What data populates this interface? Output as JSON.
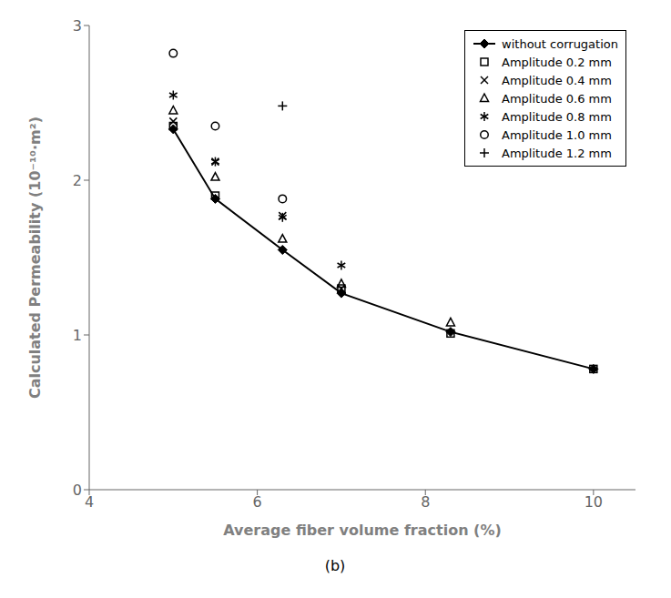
{
  "chart_data": {
    "type": "line",
    "title": "(b)",
    "xlabel": "Average fiber volume fraction (%)",
    "ylabel": "Calculated Permeability (10⁻¹⁰·m²)",
    "xlim": [
      4,
      10.5
    ],
    "ylim": [
      0,
      3
    ],
    "xticks": [
      4,
      6,
      8,
      10
    ],
    "yticks": [
      0,
      1,
      2,
      3
    ],
    "grid": false,
    "legend": "upper right",
    "series": [
      {
        "name": "without corrugation",
        "type": "line",
        "color": "black",
        "marker": "diamond",
        "x": [
          5.0,
          5.5,
          6.3,
          7.0,
          8.3,
          10.0
        ],
        "values": [
          2.33,
          1.88,
          1.55,
          1.27,
          1.02,
          0.78
        ]
      },
      {
        "name": "Amplitude 0.2 mm",
        "type": "scatter",
        "color": "black",
        "marker": "square",
        "x": [
          5.0,
          5.5,
          7.0,
          8.3,
          10.0
        ],
        "values": [
          2.35,
          1.9,
          1.3,
          1.01,
          0.78
        ]
      },
      {
        "name": "Amplitude 0.4 mm",
        "type": "scatter",
        "color": "black",
        "marker": "x",
        "x": [
          5.0,
          5.5,
          6.3,
          7.0
        ],
        "values": [
          2.38,
          2.12,
          1.77,
          1.3
        ]
      },
      {
        "name": "Amplitude 0.6 mm",
        "type": "scatter",
        "color": "black",
        "marker": "triangle",
        "x": [
          5.0,
          5.5,
          6.3,
          7.0,
          8.3
        ],
        "values": [
          2.45,
          2.02,
          1.62,
          1.33,
          1.08
        ]
      },
      {
        "name": "Amplitude 0.8 mm",
        "type": "scatter",
        "color": "black",
        "marker": "asterisk",
        "x": [
          5.0,
          5.5,
          6.3,
          7.0
        ],
        "values": [
          2.55,
          2.12,
          1.76,
          1.45
        ]
      },
      {
        "name": "Amplitude 1.0 mm",
        "type": "scatter",
        "color": "black",
        "marker": "circle",
        "x": [
          5.0,
          5.5,
          6.3
        ],
        "values": [
          2.82,
          2.35,
          1.88
        ]
      },
      {
        "name": "Amplitude 1.2 mm",
        "type": "scatter",
        "color": "black",
        "marker": "plus",
        "x": [
          6.3
        ],
        "values": [
          2.48
        ]
      }
    ]
  }
}
